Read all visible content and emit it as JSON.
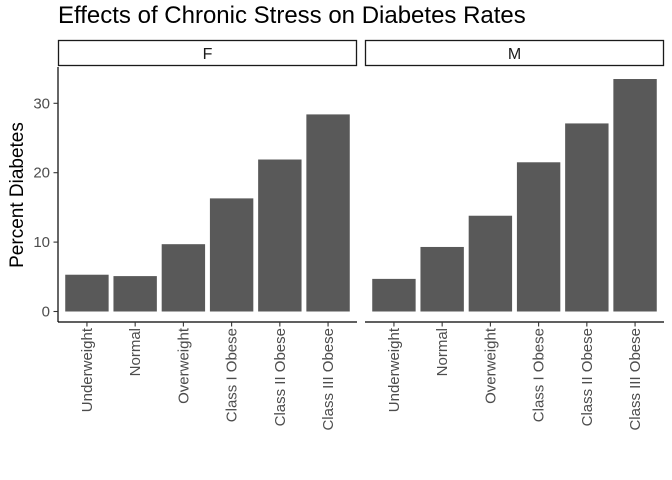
{
  "chart_data": {
    "type": "bar",
    "title": "Effects of Chronic Stress on Diabetes Rates",
    "xlabel": "",
    "ylabel": "Percent Diabetes",
    "ylim": [
      0,
      35
    ],
    "y_ticks": [
      0,
      10,
      20,
      30
    ],
    "grid": false,
    "bar_color": "#595959",
    "categories": [
      "Underweight",
      "Normal",
      "Overweight",
      "Class I Obese",
      "Class II Obese",
      "Class III Obese"
    ],
    "facets": [
      {
        "name": "F",
        "values": [
          5.3,
          5.1,
          9.7,
          16.3,
          21.9,
          28.4
        ]
      },
      {
        "name": "M",
        "values": [
          4.7,
          9.3,
          13.8,
          21.5,
          27.1,
          33.5
        ]
      }
    ]
  }
}
